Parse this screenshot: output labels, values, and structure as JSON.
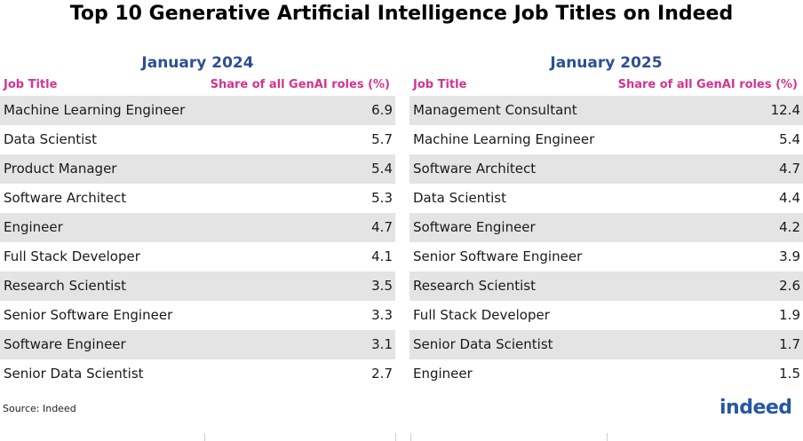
{
  "title": "Top 10 Generative Artificial Intelligence Job Titles on Indeed",
  "source": "Source: Indeed",
  "logo_text": "indeed",
  "chart_data": [
    {
      "type": "table",
      "title": "January 2024",
      "columns": [
        "Job Title",
        "Share of all GenAI roles (%)"
      ],
      "rows": [
        [
          "Machine Learning Engineer",
          "6.9"
        ],
        [
          "Data Scientist",
          "5.7"
        ],
        [
          "Product Manager",
          "5.4"
        ],
        [
          "Software Architect",
          "5.3"
        ],
        [
          "Engineer",
          "4.7"
        ],
        [
          "Full Stack Developer",
          "4.1"
        ],
        [
          "Research Scientist",
          "3.5"
        ],
        [
          "Senior Software Engineer",
          "3.3"
        ],
        [
          "Software Engineer",
          "3.1"
        ],
        [
          "Senior Data Scientist",
          "2.7"
        ]
      ]
    },
    {
      "type": "table",
      "title": "January 2025",
      "columns": [
        "Job Title",
        "Share of all GenAI roles (%)"
      ],
      "rows": [
        [
          "Management Consultant",
          "12.4"
        ],
        [
          "Machine Learning Engineer",
          "5.4"
        ],
        [
          "Software Architect",
          "4.7"
        ],
        [
          "Data Scientist",
          "4.4"
        ],
        [
          "Software Engineer",
          "4.2"
        ],
        [
          "Senior Software Engineer",
          "3.9"
        ],
        [
          "Research Scientist",
          "2.6"
        ],
        [
          "Full Stack Developer",
          "1.9"
        ],
        [
          "Senior Data Scientist",
          "1.7"
        ],
        [
          "Engineer",
          "1.5"
        ]
      ]
    }
  ]
}
